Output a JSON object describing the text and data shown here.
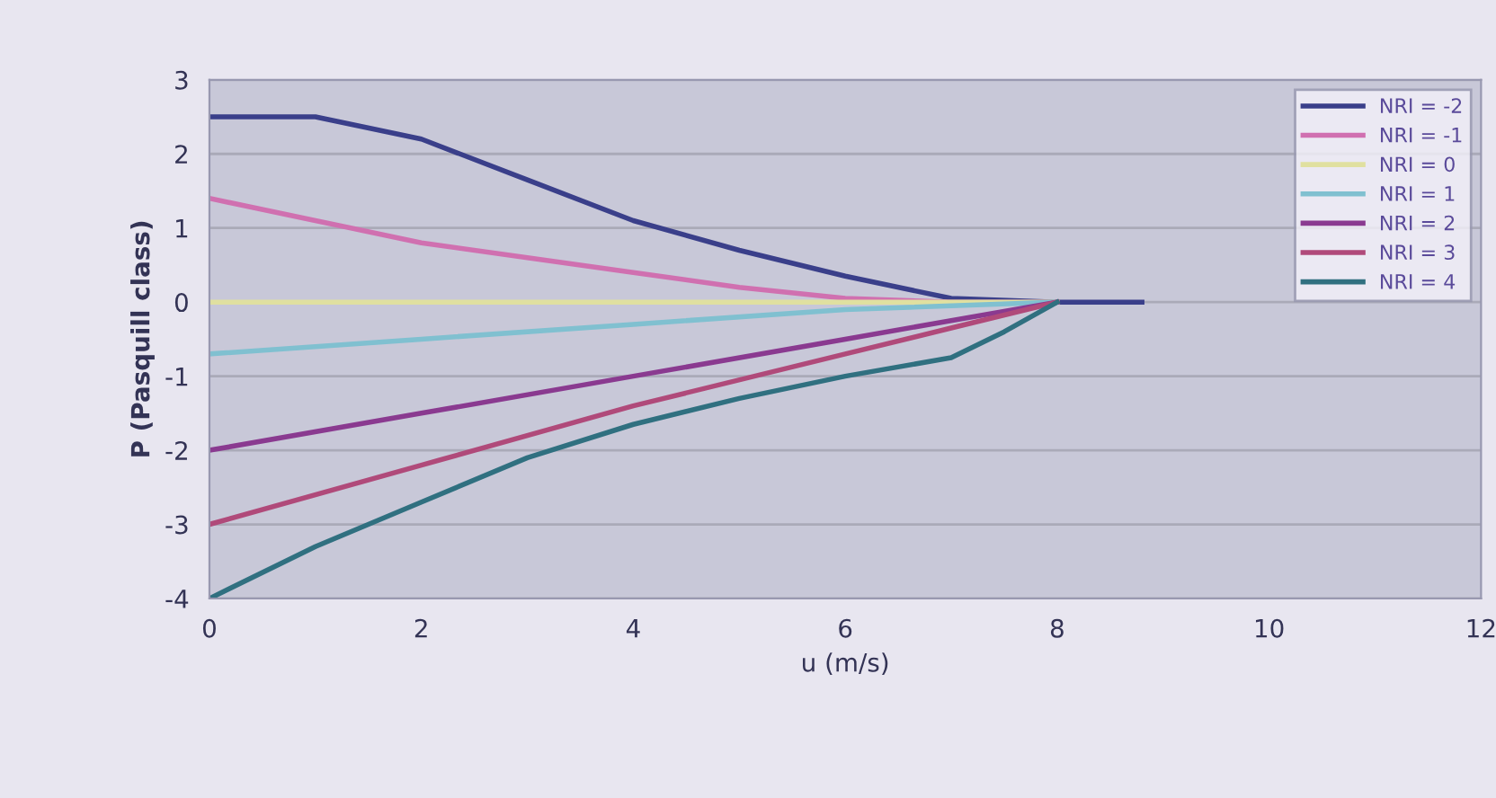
{
  "chart_data": {
    "type": "line",
    "xlabel": "u (m/s)",
    "ylabel": "P (Pasquill class)",
    "xlim": [
      0,
      12
    ],
    "xticks": [
      0,
      2,
      4,
      6,
      8,
      10,
      12
    ],
    "ylim": [
      -4,
      3
    ],
    "yticks": [
      -4,
      -3,
      -2,
      -1,
      0,
      1,
      2,
      3
    ],
    "grid": "y",
    "legend": "top right",
    "marker": "none",
    "line_style": "solid",
    "series": [
      {
        "name": "NRI = -2",
        "color": "#3a3f8a",
        "x": [
          0,
          1,
          2,
          3,
          4,
          5,
          6,
          7,
          8,
          8.8
        ],
        "values": [
          2.5,
          2.5,
          2.2,
          1.65,
          1.1,
          0.7,
          0.35,
          0.05,
          0,
          0
        ]
      },
      {
        "name": "NRI = -1",
        "color": "#d070b0",
        "x": [
          0,
          1,
          2,
          3,
          4,
          5,
          6,
          7,
          8
        ],
        "values": [
          1.4,
          1.1,
          0.8,
          0.6,
          0.4,
          0.2,
          0.05,
          0,
          0
        ]
      },
      {
        "name": "NRI = 0",
        "color": "#e0e0a0",
        "x": [
          0,
          2,
          4,
          6,
          8
        ],
        "values": [
          0,
          0,
          0,
          0,
          0
        ]
      },
      {
        "name": "NRI = 1",
        "color": "#80c0d0",
        "x": [
          0,
          2,
          4,
          6,
          8
        ],
        "values": [
          -0.7,
          -0.5,
          -0.3,
          -0.1,
          0
        ]
      },
      {
        "name": "NRI = 2",
        "color": "#8a3a90",
        "x": [
          0,
          2,
          4,
          6,
          7,
          8
        ],
        "values": [
          -2,
          -1.5,
          -1,
          -0.5,
          -0.25,
          0
        ]
      },
      {
        "name": "NRI = 3",
        "color": "#b04a7a",
        "x": [
          0,
          2,
          4,
          6,
          7,
          8
        ],
        "values": [
          -3,
          -2.2,
          -1.4,
          -0.7,
          -0.35,
          0
        ]
      },
      {
        "name": "NRI = 4",
        "color": "#307080",
        "x": [
          0,
          1,
          2,
          3,
          4,
          5,
          6,
          7,
          7.5,
          8
        ],
        "values": [
          -4,
          -3.3,
          -2.7,
          -2.1,
          -1.65,
          -1.3,
          -1,
          -0.75,
          -0.4,
          0
        ]
      }
    ]
  }
}
